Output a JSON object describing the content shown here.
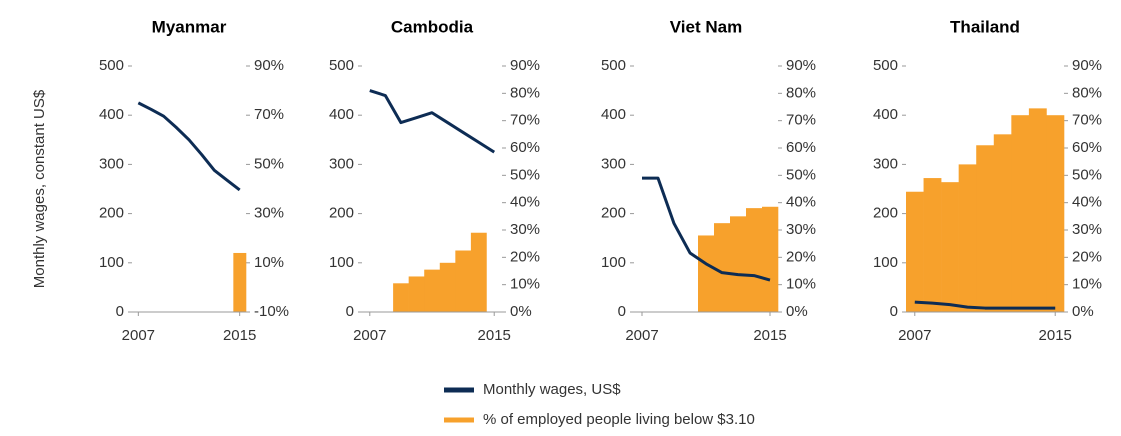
{
  "ylabel": "Monthly wages, constant US$",
  "legend": [
    {
      "name": "Monthly wages, US$",
      "color": "#0d2c54"
    },
    {
      "name": "% of employed people living below $3.10",
      "color": "#f7a12c"
    }
  ],
  "chart_data": [
    {
      "type": "combo",
      "title": "Myanmar",
      "x": [
        2007,
        2008,
        2009,
        2010,
        2011,
        2012,
        2013,
        2014,
        2015
      ],
      "xlim": [
        2006.5,
        2015.5
      ],
      "xticks": [
        2007,
        2015
      ],
      "ylim": [
        0,
        500
      ],
      "yticks": [
        0,
        100,
        200,
        300,
        400,
        500
      ],
      "y2lim": [
        -10,
        90
      ],
      "y2ticks": [
        {
          "value": -10,
          "label": "-10%"
        },
        {
          "value": 10,
          "label": "10%"
        },
        {
          "value": 30,
          "label": "30%"
        },
        {
          "value": 50,
          "label": "50%"
        },
        {
          "value": 70,
          "label": "70%"
        },
        {
          "value": 90,
          "label": "90%"
        }
      ],
      "series": [
        {
          "color": "#0d2c54",
          "values": [
            425,
            412,
            398,
            375,
            350,
            320,
            288,
            268,
            248
          ]
        },
        {
          "color": "#f7a12c",
          "axis": "y2",
          "values": [
            null,
            null,
            null,
            null,
            null,
            null,
            null,
            null,
            14
          ]
        }
      ]
    },
    {
      "type": "combo",
      "title": "Cambodia",
      "x": [
        2007,
        2008,
        2009,
        2010,
        2011,
        2012,
        2013,
        2014,
        2015
      ],
      "xlim": [
        2006.5,
        2015.5
      ],
      "xticks": [
        2007,
        2015
      ],
      "ylim": [
        0,
        500
      ],
      "yticks": [
        0,
        100,
        200,
        300,
        400,
        500
      ],
      "y2lim": [
        0,
        90
      ],
      "y2ticks": [
        {
          "value": 0,
          "label": "0%"
        },
        {
          "value": 10,
          "label": "10%"
        },
        {
          "value": 20,
          "label": "20%"
        },
        {
          "value": 30,
          "label": "30%"
        },
        {
          "value": 40,
          "label": "40%"
        },
        {
          "value": 50,
          "label": "50%"
        },
        {
          "value": 60,
          "label": "60%"
        },
        {
          "value": 70,
          "label": "70%"
        },
        {
          "value": 80,
          "label": "80%"
        },
        {
          "value": 90,
          "label": "90%"
        }
      ],
      "series": [
        {
          "color": "#0d2c54",
          "values": [
            450,
            440,
            385,
            395,
            405,
            385,
            365,
            345,
            325
          ]
        },
        {
          "color": "#f7a12c",
          "axis": "y2",
          "values": [
            null,
            null,
            10.5,
            13,
            15.5,
            18,
            22.5,
            29,
            null
          ]
        }
      ]
    },
    {
      "type": "combo",
      "title": "Viet Nam",
      "x": [
        2007,
        2008,
        2009,
        2010,
        2011,
        2012,
        2013,
        2014,
        2015
      ],
      "xlim": [
        2006.5,
        2015.5
      ],
      "xticks": [
        2007,
        2015
      ],
      "ylim": [
        0,
        500
      ],
      "yticks": [
        0,
        100,
        200,
        300,
        400,
        500
      ],
      "y2lim": [
        0,
        90
      ],
      "y2ticks": [
        {
          "value": 0,
          "label": "0%"
        },
        {
          "value": 10,
          "label": "10%"
        },
        {
          "value": 20,
          "label": "20%"
        },
        {
          "value": 30,
          "label": "30%"
        },
        {
          "value": 40,
          "label": "40%"
        },
        {
          "value": 50,
          "label": "50%"
        },
        {
          "value": 60,
          "label": "60%"
        },
        {
          "value": 70,
          "label": "70%"
        },
        {
          "value": 80,
          "label": "80%"
        },
        {
          "value": 90,
          "label": "90%"
        }
      ],
      "series": [
        {
          "color": "#0d2c54",
          "values": [
            272,
            272,
            180,
            120,
            98,
            80,
            76,
            74,
            65
          ]
        },
        {
          "color": "#f7a12c",
          "axis": "y2",
          "values": [
            null,
            null,
            null,
            null,
            28,
            32.5,
            35,
            38,
            38.5
          ]
        }
      ]
    },
    {
      "type": "combo",
      "title": "Thailand",
      "x": [
        2007,
        2008,
        2009,
        2010,
        2011,
        2012,
        2013,
        2014,
        2015
      ],
      "xlim": [
        2006.5,
        2015.5
      ],
      "xticks": [
        2007,
        2015
      ],
      "ylim": [
        0,
        500
      ],
      "yticks": [
        0,
        100,
        200,
        300,
        400,
        500
      ],
      "y2lim": [
        0,
        90
      ],
      "y2ticks": [
        {
          "value": 0,
          "label": "0%"
        },
        {
          "value": 10,
          "label": "10%"
        },
        {
          "value": 20,
          "label": "20%"
        },
        {
          "value": 30,
          "label": "30%"
        },
        {
          "value": 40,
          "label": "40%"
        },
        {
          "value": 50,
          "label": "50%"
        },
        {
          "value": 60,
          "label": "60%"
        },
        {
          "value": 70,
          "label": "70%"
        },
        {
          "value": 80,
          "label": "80%"
        },
        {
          "value": 90,
          "label": "90%"
        }
      ],
      "series": [
        {
          "color": "#0d2c54",
          "values": [
            20,
            18,
            15,
            10,
            8,
            8,
            8,
            8,
            8
          ]
        },
        {
          "color": "#f7a12c",
          "axis": "y2",
          "values": [
            44,
            49,
            47.5,
            54,
            61,
            65,
            72,
            74.5,
            72
          ]
        }
      ]
    }
  ]
}
